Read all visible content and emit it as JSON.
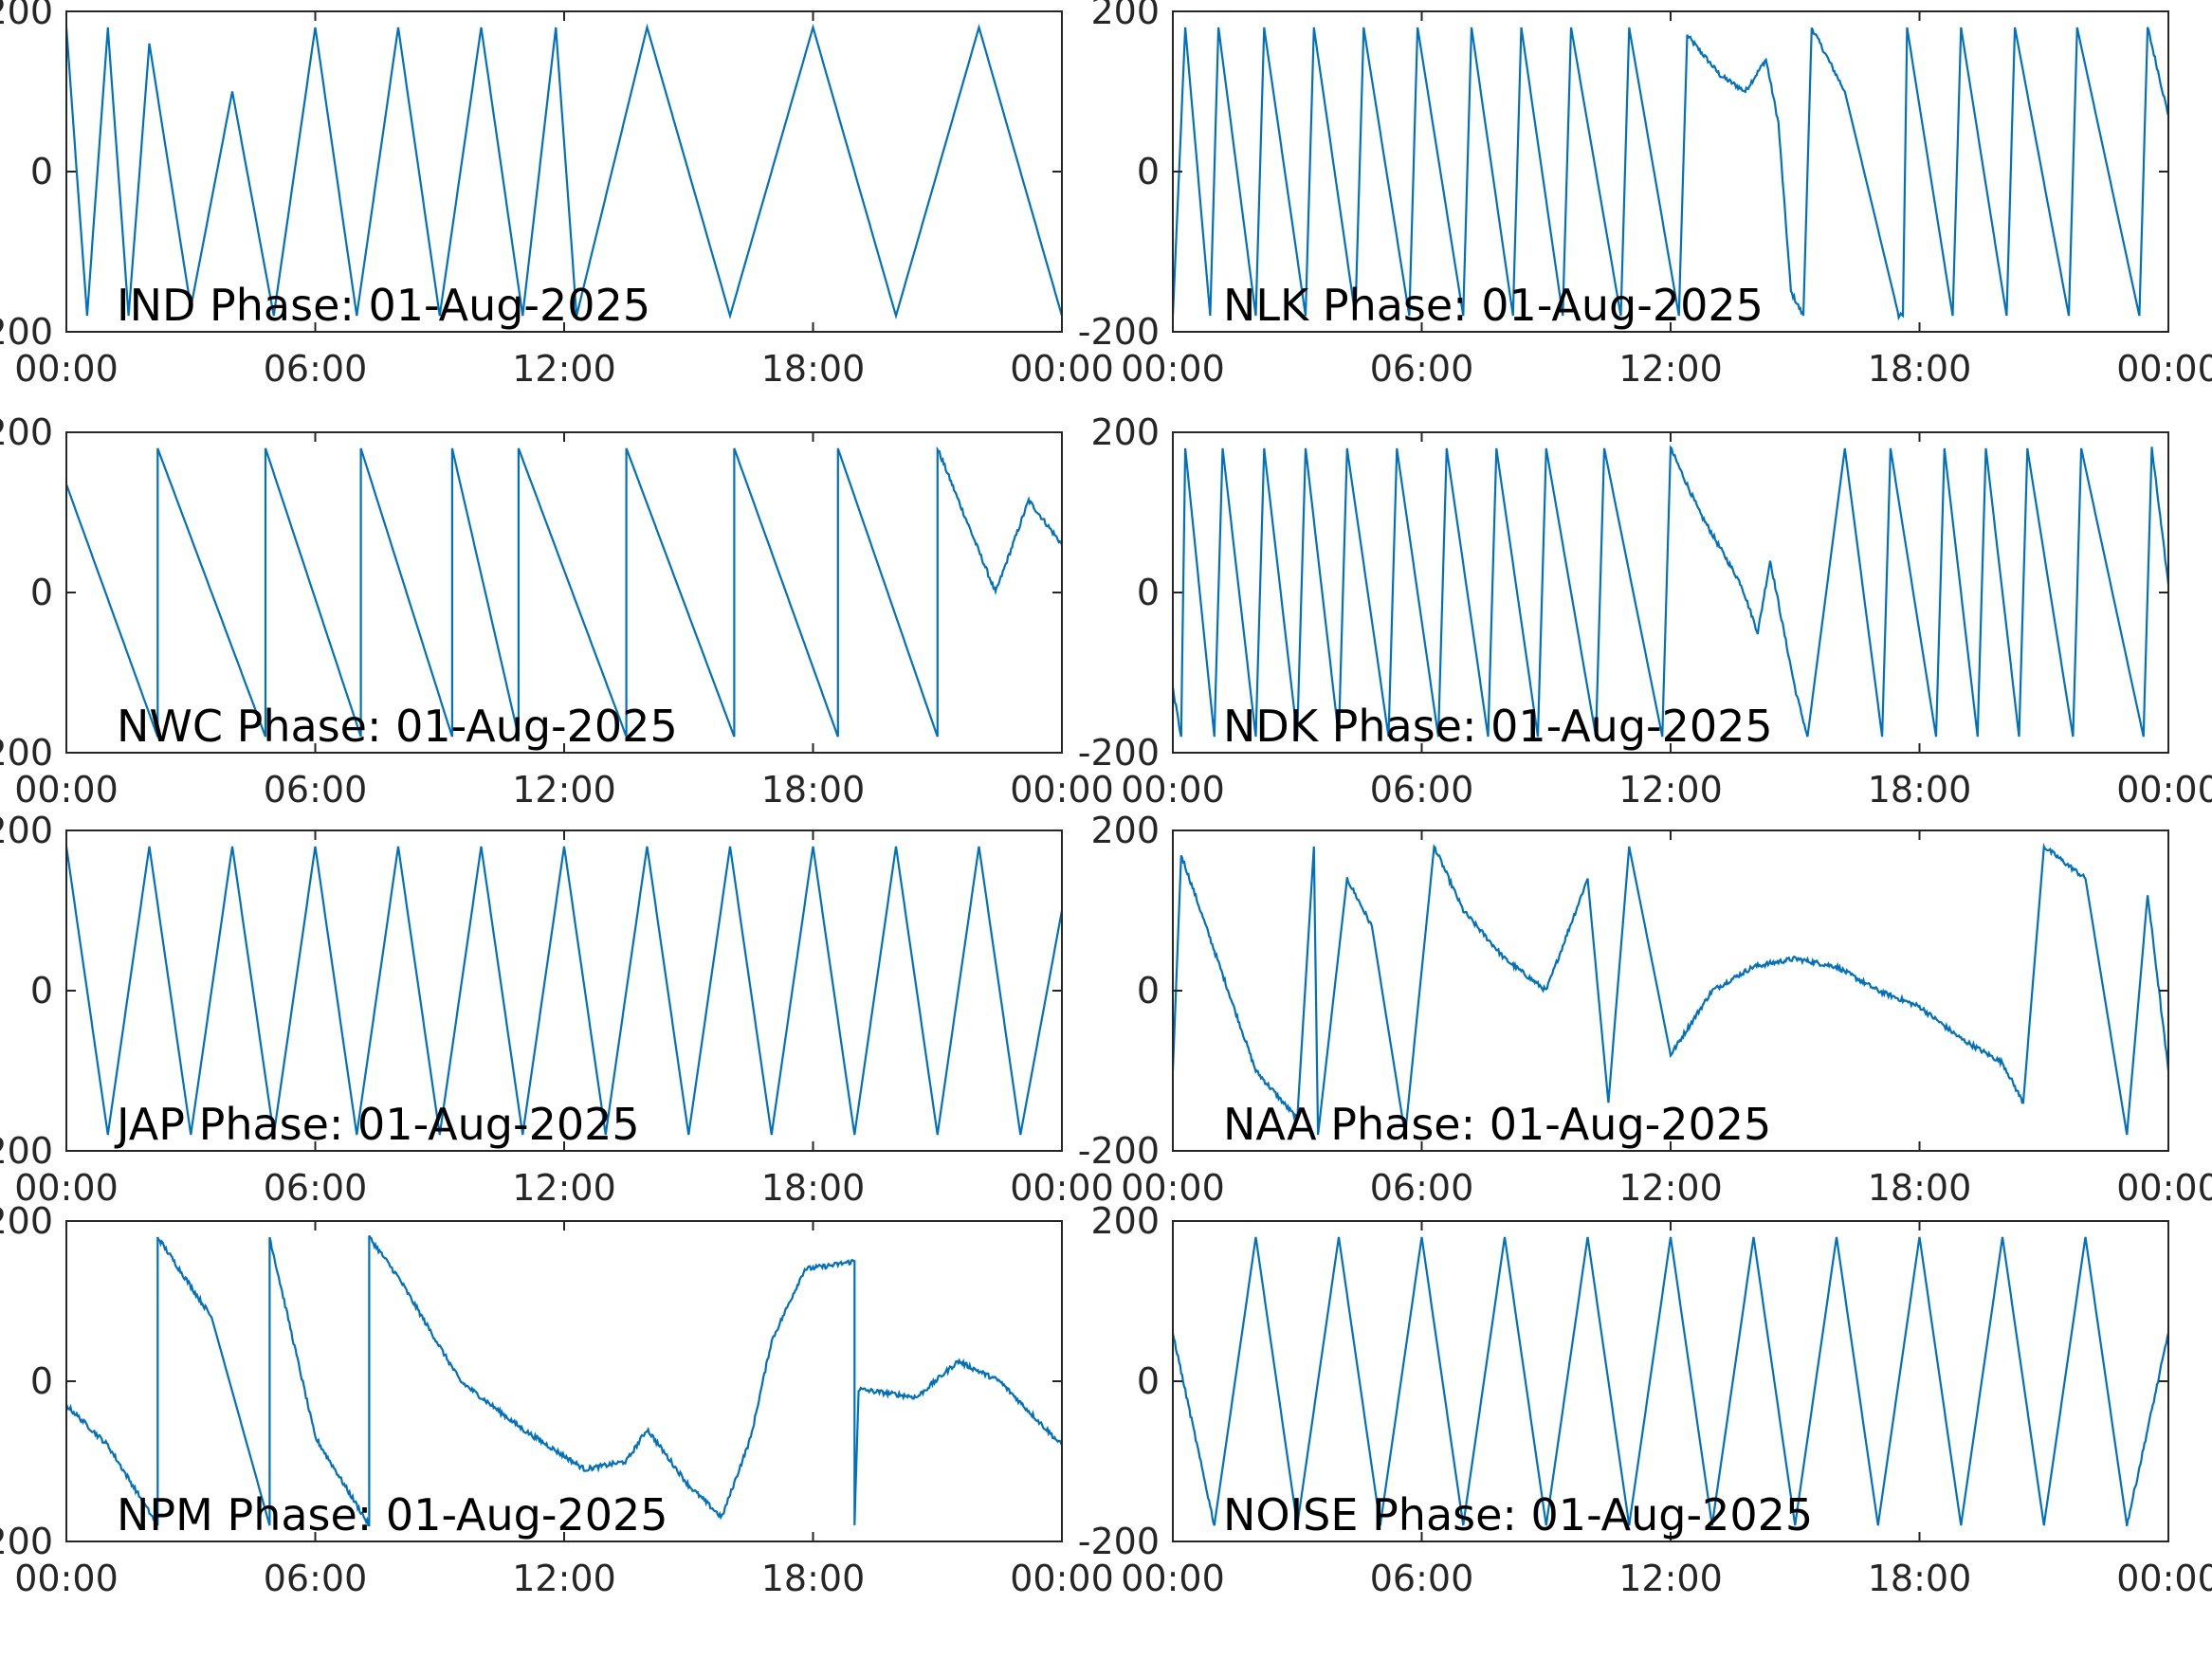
{
  "colors": {
    "line": "#0072BD",
    "axis": "#262626",
    "background": "#ffffff"
  },
  "chart_data": [
    {
      "type": "line",
      "annotation": "IND Phase: 01-Aug-2025",
      "xtick_labels": [
        "00:00",
        "06:00",
        "12:00",
        "18:00",
        "00:00"
      ],
      "ytick_labels": [
        "-200",
        "0",
        "200"
      ],
      "xlim": [
        "00:00",
        "24:00"
      ],
      "ylim": [
        -200,
        200
      ],
      "grid": false,
      "series": [
        {
          "x_hours": [
            0,
            0.5,
            1,
            1.5,
            2,
            3,
            4,
            5,
            6,
            7,
            8,
            9,
            10,
            11,
            11.8,
            12.3,
            14,
            16,
            18,
            20,
            22,
            24
          ],
          "values": [
            180,
            -180,
            180,
            -180,
            160,
            -170,
            100,
            -180,
            180,
            -180,
            180,
            -180,
            180,
            -180,
            180,
            -180,
            180,
            -180,
            180,
            -180,
            180,
            -180
          ]
        }
      ]
    },
    {
      "type": "line",
      "annotation": "NLK Phase: 01-Aug-2025",
      "xtick_labels": [
        "00:00",
        "06:00",
        "12:00",
        "18:00",
        "00:00"
      ],
      "ytick_labels": [
        "-200",
        "0",
        "200"
      ],
      "xlim": [
        "00:00",
        "24:00"
      ],
      "ylim": [
        -200,
        200
      ],
      "grid": false,
      "series": [
        {
          "x_hours": [
            0,
            0.3,
            0.9,
            1.1,
            2.0,
            2.2,
            3.2,
            3.4,
            4.4,
            4.6,
            5.7,
            5.9,
            7.0,
            7.2,
            8.2,
            8.4,
            9.4,
            9.6,
            10.8,
            11.0,
            12.2,
            12.4,
            13.2,
            13.8,
            14.3,
            14.6,
            14.9,
            15.2,
            15.4,
            16.2,
            17.5,
            17.6,
            17.7,
            18.8,
            19.0,
            20.1,
            20.3,
            21.6,
            21.8,
            23.3,
            23.5,
            24
          ],
          "values": [
            -180,
            180,
            -180,
            180,
            -180,
            180,
            -180,
            180,
            -180,
            180,
            -180,
            180,
            -180,
            180,
            -180,
            180,
            -180,
            180,
            -180,
            180,
            -180,
            170,
            120,
            100,
            140,
            60,
            -150,
            -180,
            180,
            100,
            -180,
            -180,
            180,
            -180,
            180,
            -180,
            180,
            -180,
            180,
            -180,
            180,
            70
          ]
        }
      ]
    },
    {
      "type": "line",
      "annotation": "NWC Phase: 01-Aug-2025",
      "xtick_labels": [
        "00:00",
        "06:00",
        "12:00",
        "18:00",
        "00:00"
      ],
      "ytick_labels": [
        "-200",
        "0",
        "200"
      ],
      "xlim": [
        "00:00",
        "24:00"
      ],
      "ylim": [
        -200,
        200
      ],
      "grid": false,
      "series": [
        {
          "x_hours": [
            0,
            2.2,
            2.2,
            4.8,
            4.8,
            7.1,
            7.1,
            9.3,
            9.3,
            10.9,
            10.9,
            13.5,
            13.5,
            16.1,
            16.1,
            18.6,
            18.6,
            21.0,
            21.0,
            22.4,
            23.2,
            24
          ],
          "values": [
            135,
            -180,
            180,
            -180,
            180,
            -180,
            180,
            -180,
            180,
            -180,
            180,
            -180,
            180,
            -180,
            180,
            -180,
            180,
            -180,
            180,
            0,
            115,
            60
          ]
        }
      ]
    },
    {
      "type": "line",
      "annotation": "NDK Phase: 01-Aug-2025",
      "xtick_labels": [
        "00:00",
        "06:00",
        "12:00",
        "18:00",
        "00:00"
      ],
      "ytick_labels": [
        "-200",
        "0",
        "200"
      ],
      "xlim": [
        "00:00",
        "24:00"
      ],
      "ylim": [
        -200,
        200
      ],
      "grid": false,
      "series": [
        {
          "x_hours": [
            0,
            0.2,
            0.3,
            1.0,
            1.2,
            2.0,
            2.2,
            3.0,
            3.2,
            4.0,
            4.2,
            5.2,
            5.4,
            6.4,
            6.6,
            7.6,
            7.8,
            8.8,
            9.0,
            10.2,
            10.4,
            11.8,
            12.0,
            12.7,
            13.7,
            14.1,
            14.4,
            15.0,
            15.3,
            16.2,
            17.1,
            17.3,
            18.4,
            18.6,
            19.4,
            19.6,
            20.4,
            20.6,
            21.7,
            21.9,
            23.4,
            23.6,
            24
          ],
          "values": [
            -120,
            -180,
            180,
            -180,
            180,
            -180,
            180,
            -180,
            180,
            -180,
            180,
            -180,
            180,
            -180,
            180,
            -180,
            180,
            -180,
            180,
            -180,
            180,
            -180,
            180,
            100,
            10,
            -50,
            40,
            -120,
            -180,
            180,
            -180,
            180,
            -180,
            180,
            -180,
            180,
            -180,
            180,
            -180,
            180,
            -180,
            180,
            10
          ]
        }
      ]
    },
    {
      "type": "line",
      "annotation": "JAP Phase: 01-Aug-2025",
      "xtick_labels": [
        "00:00",
        "06:00",
        "12:00",
        "18:00",
        "00:00"
      ],
      "ytick_labels": [
        "-200",
        "0",
        "200"
      ],
      "xlim": [
        "00:00",
        "24:00"
      ],
      "ylim": [
        -200,
        200
      ],
      "grid": false,
      "series": [
        {
          "x_hours": [
            0,
            1,
            2,
            3,
            4,
            5,
            6,
            7,
            8,
            9,
            10,
            11,
            12,
            13,
            14,
            15,
            16,
            17,
            18,
            19,
            20,
            21,
            22,
            23,
            24
          ],
          "values": [
            180,
            -180,
            180,
            -180,
            180,
            -180,
            180,
            -180,
            180,
            -180,
            180,
            -180,
            180,
            -180,
            180,
            -180,
            180,
            -180,
            180,
            -180,
            180,
            -180,
            180,
            -180,
            100
          ]
        }
      ]
    },
    {
      "type": "line",
      "annotation": "NAA Phase: 01-Aug-2025",
      "xtick_labels": [
        "00:00",
        "06:00",
        "12:00",
        "18:00",
        "00:00"
      ],
      "ytick_labels": [
        "-200",
        "0",
        "200"
      ],
      "xlim": [
        "00:00",
        "24:00"
      ],
      "ylim": [
        -200,
        200
      ],
      "grid": false,
      "series": [
        {
          "x_hours": [
            0,
            0.2,
            1.0,
            2.0,
            3.0,
            3.4,
            3.5,
            4.2,
            4.8,
            5.6,
            6.3,
            7.0,
            8.0,
            9.0,
            10.0,
            10.5,
            11.0,
            12.0,
            13.0,
            14.0,
            15.0,
            16.0,
            17.0,
            18.0,
            19.0,
            20.0,
            20.5,
            21.0,
            22.0,
            23.0,
            23.5,
            24
          ],
          "values": [
            -100,
            170,
            50,
            -100,
            -160,
            180,
            -180,
            140,
            80,
            -180,
            180,
            100,
            40,
            0,
            140,
            -140,
            180,
            -80,
            0,
            30,
            40,
            30,
            0,
            -20,
            -60,
            -90,
            -140,
            180,
            140,
            -180,
            120,
            -100
          ]
        }
      ]
    },
    {
      "type": "line",
      "annotation": "NPM Phase: 01-Aug-2025",
      "xtick_labels": [
        "00:00",
        "06:00",
        "12:00",
        "18:00",
        "00:00"
      ],
      "ytick_labels": [
        "-200",
        "0",
        "200"
      ],
      "xlim": [
        "00:00",
        "24:00"
      ],
      "ylim": [
        -200,
        200
      ],
      "grid": false,
      "series": [
        {
          "x_hours": [
            0,
            1.0,
            2.2,
            2.2,
            3.5,
            4.9,
            4.9,
            6.0,
            7.3,
            7.3,
            8.0,
            9.5,
            11.0,
            12.5,
            13.5,
            14.0,
            15.0,
            15.8,
            16.5,
            17.0,
            17.8,
            18.5,
            19.0,
            19.0,
            19.1,
            20.5,
            21.5,
            22.5,
            24
          ],
          "values": [
            -30,
            -80,
            -180,
            180,
            80,
            -180,
            180,
            -70,
            -180,
            180,
            130,
            0,
            -60,
            -110,
            -100,
            -60,
            -130,
            -170,
            -70,
            50,
            140,
            145,
            150,
            -180,
            -10,
            -20,
            25,
            0,
            -80
          ]
        }
      ]
    },
    {
      "type": "line",
      "annotation": "NOISE Phase: 01-Aug-2025",
      "xtick_labels": [
        "00:00",
        "06:00",
        "12:00",
        "18:00",
        "00:00"
      ],
      "ytick_labels": [
        "-200",
        "0",
        "200"
      ],
      "xlim": [
        "00:00",
        "24:00"
      ],
      "ylim": [
        -200,
        200
      ],
      "grid": false,
      "series": [
        {
          "x_hours": [
            0,
            1,
            2,
            3,
            4,
            5,
            6,
            7,
            8,
            9,
            10,
            11,
            12,
            13,
            14,
            15,
            16,
            17,
            18,
            19,
            20,
            21,
            22,
            23,
            24
          ],
          "values": [
            60,
            -180,
            180,
            -180,
            180,
            -180,
            180,
            -180,
            180,
            -180,
            180,
            -180,
            180,
            -180,
            180,
            -180,
            180,
            -180,
            180,
            -180,
            180,
            -180,
            180,
            -180,
            60
          ]
        }
      ]
    }
  ]
}
